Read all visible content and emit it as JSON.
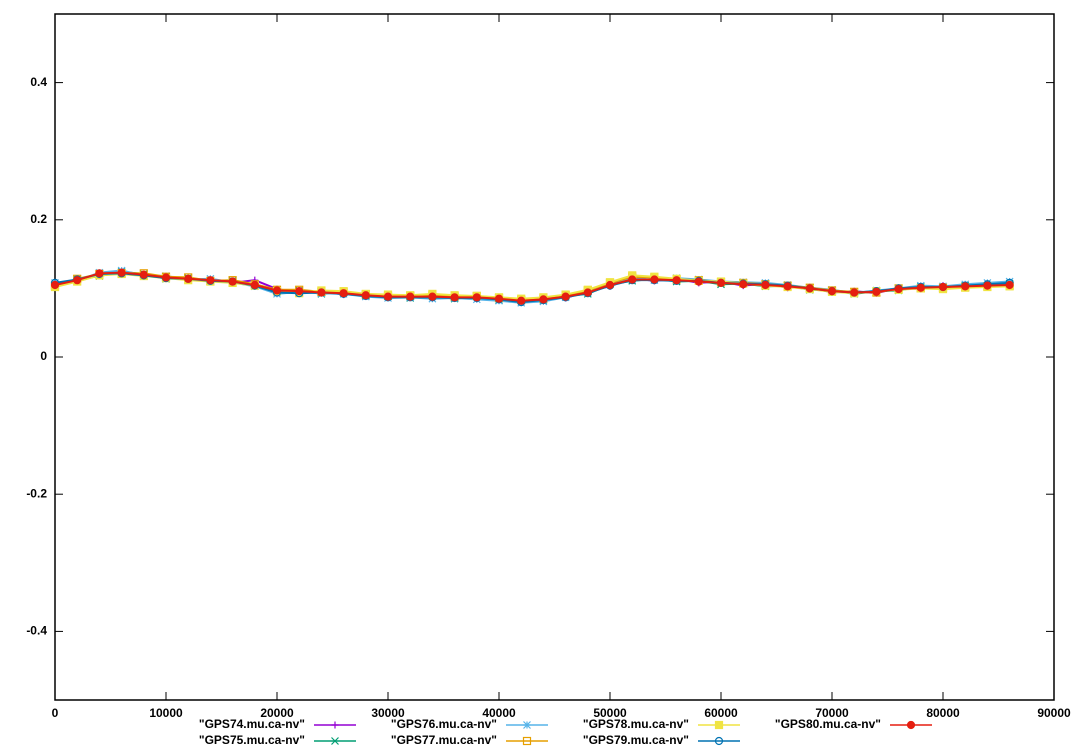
{
  "chart_data": {
    "type": "line",
    "x": [
      0,
      2000,
      4000,
      6000,
      8000,
      10000,
      12000,
      14000,
      16000,
      18000,
      20000,
      22000,
      24000,
      26000,
      28000,
      30000,
      32000,
      34000,
      36000,
      38000,
      40000,
      42000,
      44000,
      46000,
      48000,
      50000,
      52000,
      54000,
      56000,
      58000,
      60000,
      62000,
      64000,
      66000,
      68000,
      70000,
      72000,
      74000,
      76000,
      78000,
      80000,
      82000,
      84000,
      86000
    ],
    "series": [
      {
        "name": "\"GPS74.mu.ca-nv\"",
        "color": "#9400d3",
        "marker": "plus",
        "values": [
          0.107,
          0.11,
          0.12,
          0.125,
          0.118,
          0.117,
          0.112,
          0.113,
          0.108,
          0.112,
          0.099,
          0.094,
          0.096,
          0.091,
          0.092,
          0.087,
          0.09,
          0.086,
          0.089,
          0.085,
          0.087,
          0.08,
          0.086,
          0.086,
          0.096,
          0.103,
          0.115,
          0.111,
          0.114,
          0.108,
          0.11,
          0.104,
          0.107,
          0.101,
          0.102,
          0.094,
          0.096,
          0.093,
          0.101,
          0.099,
          0.104,
          0.101,
          0.106,
          0.103
        ]
      },
      {
        "name": "\"GPS75.mu.ca-nv\"",
        "color": "#009e73",
        "marker": "cross",
        "values": [
          0.103,
          0.113,
          0.118,
          0.124,
          0.121,
          0.114,
          0.115,
          0.11,
          0.111,
          0.104,
          0.095,
          0.097,
          0.092,
          0.094,
          0.089,
          0.09,
          0.086,
          0.089,
          0.085,
          0.088,
          0.083,
          0.083,
          0.082,
          0.089,
          0.092,
          0.106,
          0.111,
          0.114,
          0.11,
          0.111,
          0.106,
          0.107,
          0.103,
          0.104,
          0.098,
          0.097,
          0.092,
          0.096,
          0.097,
          0.103,
          0.1,
          0.104,
          0.102,
          0.107
        ]
      },
      {
        "name": "\"GPS76.mu.ca-nv\"",
        "color": "#56b4e9",
        "marker": "star",
        "values": [
          0.108,
          0.111,
          0.123,
          0.126,
          0.119,
          0.118,
          0.113,
          0.114,
          0.109,
          0.103,
          0.092,
          0.095,
          0.093,
          0.092,
          0.088,
          0.086,
          0.087,
          0.085,
          0.086,
          0.084,
          0.082,
          0.079,
          0.081,
          0.087,
          0.095,
          0.107,
          0.116,
          0.112,
          0.115,
          0.113,
          0.11,
          0.109,
          0.108,
          0.105,
          0.101,
          0.098,
          0.093,
          0.097,
          0.1,
          0.104,
          0.103,
          0.106,
          0.108,
          0.11
        ]
      },
      {
        "name": "\"GPS77.mu.ca-nv\"",
        "color": "#e69f00",
        "marker": "square",
        "values": [
          0.104,
          0.114,
          0.121,
          0.122,
          0.122,
          0.117,
          0.116,
          0.111,
          0.112,
          0.106,
          0.098,
          0.098,
          0.095,
          0.095,
          0.091,
          0.089,
          0.089,
          0.09,
          0.088,
          0.089,
          0.086,
          0.083,
          0.085,
          0.09,
          0.097,
          0.108,
          0.117,
          0.116,
          0.113,
          0.112,
          0.109,
          0.108,
          0.106,
          0.104,
          0.101,
          0.097,
          0.095,
          0.094,
          0.1,
          0.1,
          0.101,
          0.102,
          0.103,
          0.104
        ]
      },
      {
        "name": "\"GPS78.mu.ca-nv\"",
        "color": "#f0e442",
        "marker": "filled-square",
        "values": [
          0.102,
          0.11,
          0.119,
          0.121,
          0.118,
          0.115,
          0.112,
          0.11,
          0.108,
          0.104,
          0.096,
          0.093,
          0.097,
          0.096,
          0.092,
          0.091,
          0.09,
          0.092,
          0.09,
          0.089,
          0.087,
          0.085,
          0.087,
          0.091,
          0.098,
          0.109,
          0.119,
          0.117,
          0.114,
          0.111,
          0.11,
          0.107,
          0.104,
          0.102,
          0.099,
          0.095,
          0.093,
          0.096,
          0.098,
          0.1,
          0.099,
          0.101,
          0.102,
          0.103
        ]
      },
      {
        "name": "\"GPS79.mu.ca-nv\"",
        "color": "#0072b2",
        "marker": "circle",
        "values": [
          0.108,
          0.113,
          0.121,
          0.122,
          0.119,
          0.115,
          0.114,
          0.111,
          0.11,
          0.104,
          0.094,
          0.093,
          0.094,
          0.092,
          0.089,
          0.087,
          0.087,
          0.087,
          0.086,
          0.086,
          0.084,
          0.08,
          0.083,
          0.087,
          0.093,
          0.104,
          0.112,
          0.112,
          0.111,
          0.111,
          0.108,
          0.107,
          0.106,
          0.104,
          0.1,
          0.096,
          0.094,
          0.096,
          0.1,
          0.102,
          0.102,
          0.104,
          0.106,
          0.108
        ]
      },
      {
        "name": "\"GPS80.mu.ca-nv\"",
        "color": "#e51e10",
        "marker": "filled-circle",
        "values": [
          0.105,
          0.112,
          0.122,
          0.123,
          0.12,
          0.116,
          0.114,
          0.112,
          0.11,
          0.105,
          0.097,
          0.096,
          0.094,
          0.093,
          0.09,
          0.088,
          0.088,
          0.088,
          0.087,
          0.087,
          0.085,
          0.082,
          0.084,
          0.088,
          0.094,
          0.105,
          0.113,
          0.113,
          0.112,
          0.11,
          0.108,
          0.106,
          0.105,
          0.103,
          0.1,
          0.096,
          0.094,
          0.095,
          0.099,
          0.101,
          0.102,
          0.103,
          0.104,
          0.105
        ]
      }
    ],
    "xlim": [
      0,
      90000
    ],
    "xticks": [
      0,
      10000,
      20000,
      30000,
      40000,
      50000,
      60000,
      70000,
      80000,
      90000
    ],
    "ylim": [
      -0.5,
      0.5
    ],
    "yticks": [
      -0.4,
      -0.2,
      0,
      0.2,
      0.4
    ],
    "grid": false,
    "legend": "bottom"
  }
}
